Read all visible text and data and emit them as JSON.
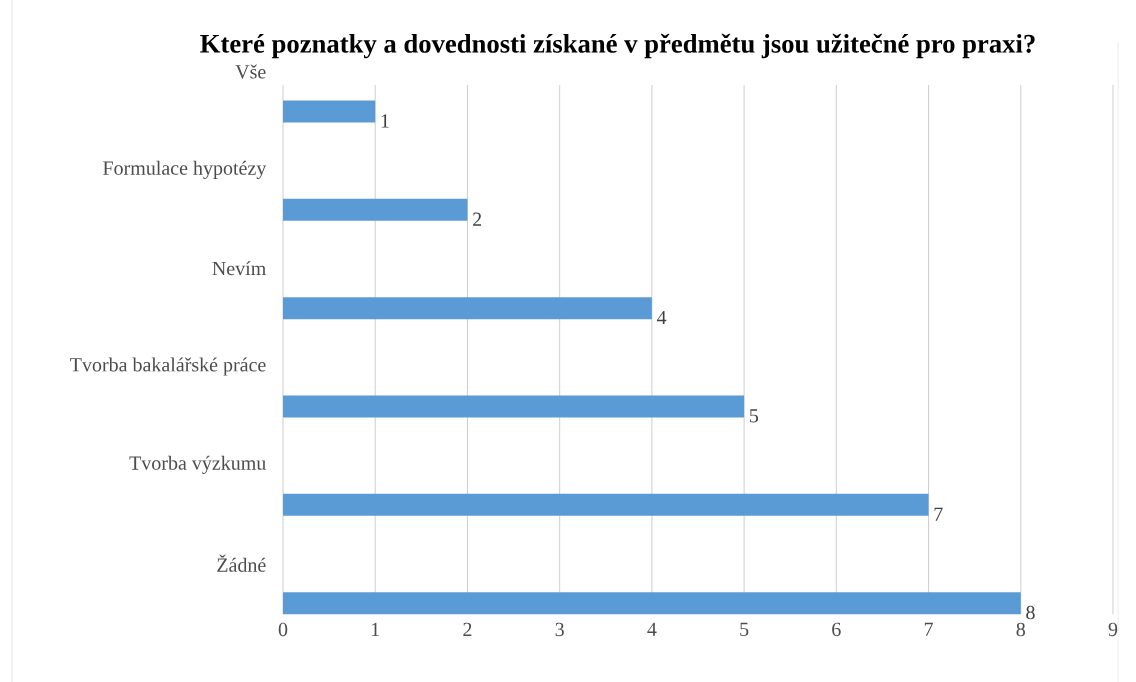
{
  "chart_data": {
    "type": "bar",
    "orientation": "horizontal",
    "title": "Které poznatky a dovednosti získané v předmětu jsou užitečné pro praxi?",
    "categories": [
      "Vše",
      "Formulace hypotézy",
      "Nevím",
      "Tvorba bakalářské práce",
      "Tvorba výzkumu",
      "Žádné"
    ],
    "values": [
      1,
      2,
      4,
      5,
      7,
      8
    ],
    "color": "#5b9bd5",
    "xlim": [
      0,
      9
    ],
    "xticks": [
      0,
      1,
      2,
      3,
      4,
      5,
      6,
      7,
      8,
      9
    ],
    "grid": "x",
    "data_labels": true
  }
}
